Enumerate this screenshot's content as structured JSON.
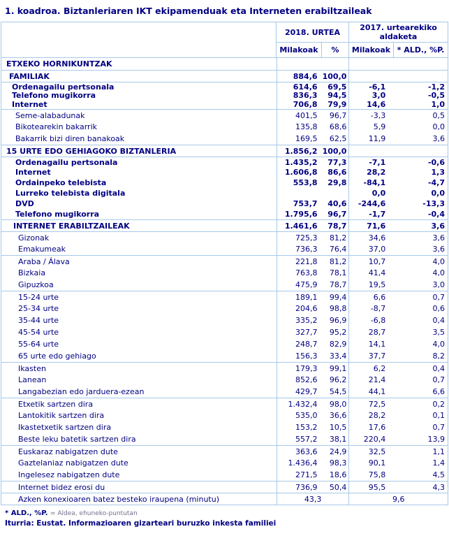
{
  "title": "1. koadroa. Biztanleriaren IKT ekipamenduak eta Interneten erabiltzaileak",
  "colors": {
    "text_navy": "#000082",
    "border_blue": "#a6c9e8"
  },
  "table": {
    "header": {
      "col_2018": "2018. URTEA",
      "col_2017": "2017. urtearekiko aldaketa",
      "sub_milakoak_2018": "Milakoak",
      "sub_pct_2018": "%",
      "sub_milakoak_2017": "Milakoak",
      "sub_ald_2017": "* ALD., %P."
    },
    "rows": [
      {
        "label": "ETXEKO HORNIKUNTZAK",
        "m18": "",
        "p18": "",
        "m17": "",
        "ald": "",
        "bold": true,
        "lvl": 0,
        "sz": "t",
        "bt": false
      },
      {
        "label": "FAMILIAK",
        "m18": "884,6",
        "p18": "100,0",
        "m17": "",
        "ald": "",
        "bold": true,
        "lvl": 1,
        "sz": "t",
        "bt": true
      },
      {
        "label": "Ordenagailu pertsonala",
        "m18": "614,6",
        "p18": "69,5",
        "m17": "-6,1",
        "ald": "-1,2",
        "bold": true,
        "lvl": 2,
        "sz": "c",
        "bt": true
      },
      {
        "label": "Telefono mugikorra",
        "m18": "836,3",
        "p18": "94,5",
        "m17": "3,0",
        "ald": "-0,5",
        "bold": true,
        "lvl": 2,
        "sz": "c",
        "bt": false
      },
      {
        "label": "Internet",
        "m18": "706,8",
        "p18": "79,9",
        "m17": "14,6",
        "ald": "1,0",
        "bold": true,
        "lvl": 2,
        "sz": "c",
        "bt": false
      },
      {
        "label": "Seme-alabadunak",
        "m18": "401,5",
        "p18": "96,7",
        "m17": "-3,3",
        "ald": "0,5",
        "bold": false,
        "lvl": 4,
        "sz": "n",
        "bt": true
      },
      {
        "label": "Bikotearekin bakarrik",
        "m18": "135,8",
        "p18": "68,6",
        "m17": "5,9",
        "ald": "0,0",
        "bold": false,
        "lvl": 4,
        "sz": "n",
        "bt": false
      },
      {
        "label": "Bakarrik bizi diren banakoak",
        "m18": "169,5",
        "p18": "62,5",
        "m17": "11,9",
        "ald": "3,6",
        "bold": false,
        "lvl": 4,
        "sz": "n",
        "bt": false
      },
      {
        "label": "15 URTE EDO GEHIAGOKO BIZTANLERIA",
        "m18": "1.856,2",
        "p18": "100,0",
        "m17": "",
        "ald": "",
        "bold": true,
        "lvl": 0,
        "sz": "t",
        "bt": true
      },
      {
        "label": "Ordenagailu pertsonala",
        "m18": "1.435,2",
        "p18": "77,3",
        "m17": "-7,1",
        "ald": "-0,6",
        "bold": true,
        "lvl": 4,
        "sz": "s",
        "bt": true
      },
      {
        "label": "Internet",
        "m18": "1.606,8",
        "p18": "86,6",
        "m17": "28,2",
        "ald": "1,3",
        "bold": true,
        "lvl": 4,
        "sz": "s",
        "bt": false
      },
      {
        "label": "Ordainpeko telebista",
        "m18": "553,8",
        "p18": "29,8",
        "m17": "-84,1",
        "ald": "-4,7",
        "bold": true,
        "lvl": 4,
        "sz": "s",
        "bt": false
      },
      {
        "label": "Lurreko telebista digitala",
        "m18": "",
        "p18": "",
        "m17": "0,0",
        "ald": "0,0",
        "bold": true,
        "lvl": 4,
        "sz": "s",
        "bt": false
      },
      {
        "label": "DVD",
        "m18": "753,7",
        "p18": "40,6",
        "m17": "-244,6",
        "ald": "-13,3",
        "bold": true,
        "lvl": 4,
        "sz": "s",
        "bt": false
      },
      {
        "label": "Telefono mugikorra",
        "m18": "1.795,6",
        "p18": "96,7",
        "m17": "-1,7",
        "ald": "-0,4",
        "bold": true,
        "lvl": 4,
        "sz": "s",
        "bt": false
      },
      {
        "label": "INTERNET ERABILTZAILEAK",
        "m18": "1.461,6",
        "p18": "78,7",
        "m17": "71,6",
        "ald": "3,6",
        "bold": true,
        "lvl": 3,
        "sz": "t",
        "bt": true
      },
      {
        "label": "Gizonak",
        "m18": "725,3",
        "p18": "81,2",
        "m17": "34,6",
        "ald": "3,6",
        "bold": false,
        "lvl": 5,
        "sz": "n",
        "bt": true
      },
      {
        "label": "Emakumeak",
        "m18": "736,3",
        "p18": "76,4",
        "m17": "37,0",
        "ald": "3,6",
        "bold": false,
        "lvl": 5,
        "sz": "n",
        "bt": false
      },
      {
        "label": "Araba / Álava",
        "m18": "221,8",
        "p18": "81,2",
        "m17": "10,7",
        "ald": "4,0",
        "bold": false,
        "lvl": 5,
        "sz": "n",
        "bt": true
      },
      {
        "label": "Bizkaia",
        "m18": "763,8",
        "p18": "78,1",
        "m17": "41,4",
        "ald": "4,0",
        "bold": false,
        "lvl": 5,
        "sz": "n",
        "bt": false
      },
      {
        "label": "Gipuzkoa",
        "m18": "475,9",
        "p18": "78,7",
        "m17": "19,5",
        "ald": "3,0",
        "bold": false,
        "lvl": 5,
        "sz": "n",
        "bt": false
      },
      {
        "label": "15-24 urte",
        "m18": "189,1",
        "p18": "99,4",
        "m17": "6,6",
        "ald": "0,7",
        "bold": false,
        "lvl": 5,
        "sz": "n",
        "bt": true
      },
      {
        "label": "25-34 urte",
        "m18": "204,6",
        "p18": "98,8",
        "m17": "-8,7",
        "ald": "0,6",
        "bold": false,
        "lvl": 5,
        "sz": "n",
        "bt": false
      },
      {
        "label": "35-44 urte",
        "m18": "335,2",
        "p18": "96,9",
        "m17": "-6,8",
        "ald": "0,4",
        "bold": false,
        "lvl": 5,
        "sz": "n",
        "bt": false
      },
      {
        "label": "45-54 urte",
        "m18": "327,7",
        "p18": "95,2",
        "m17": "28,7",
        "ald": "3,5",
        "bold": false,
        "lvl": 5,
        "sz": "n",
        "bt": false
      },
      {
        "label": "55-64 urte",
        "m18": "248,7",
        "p18": "82,9",
        "m17": "14,1",
        "ald": "4,0",
        "bold": false,
        "lvl": 5,
        "sz": "n",
        "bt": false
      },
      {
        "label": "65 urte edo gehiago",
        "m18": "156,3",
        "p18": "33,4",
        "m17": "37,7",
        "ald": "8,2",
        "bold": false,
        "lvl": 5,
        "sz": "n",
        "bt": false
      },
      {
        "label": "Ikasten",
        "m18": "179,3",
        "p18": "99,1",
        "m17": "6,2",
        "ald": "0,4",
        "bold": false,
        "lvl": 5,
        "sz": "n",
        "bt": true
      },
      {
        "label": "Lanean",
        "m18": "852,6",
        "p18": "96,2",
        "m17": "21,4",
        "ald": "0,7",
        "bold": false,
        "lvl": 5,
        "sz": "n",
        "bt": false
      },
      {
        "label": "Langabezian edo jarduera-ezean",
        "m18": "429,7",
        "p18": "54,5",
        "m17": "44,1",
        "ald": "6,6",
        "bold": false,
        "lvl": 5,
        "sz": "n",
        "bt": false
      },
      {
        "label": "Etxetik sartzen dira",
        "m18": "1.432,4",
        "p18": "98,0",
        "m17": "72,5",
        "ald": "0,2",
        "bold": false,
        "lvl": 5,
        "sz": "n",
        "bt": true
      },
      {
        "label": "Lantokitik sartzen dira",
        "m18": "535,0",
        "p18": "36,6",
        "m17": "28,2",
        "ald": "0,1",
        "bold": false,
        "lvl": 5,
        "sz": "n",
        "bt": false
      },
      {
        "label": "Ikastetxetik sartzen dira",
        "m18": "153,2",
        "p18": "10,5",
        "m17": "17,6",
        "ald": "0,7",
        "bold": false,
        "lvl": 5,
        "sz": "n",
        "bt": false
      },
      {
        "label": "Beste leku batetik sartzen dira",
        "m18": "557,2",
        "p18": "38,1",
        "m17": "220,4",
        "ald": "13,9",
        "bold": false,
        "lvl": 5,
        "sz": "n",
        "bt": false
      },
      {
        "label": "Euskaraz nabigatzen dute",
        "m18": "363,6",
        "p18": "24,9",
        "m17": "32,5",
        "ald": "1,1",
        "bold": false,
        "lvl": 5,
        "sz": "n",
        "bt": true
      },
      {
        "label": "Gaztelaniaz nabigatzen dute",
        "m18": "1.436,4",
        "p18": "98,3",
        "m17": "90,1",
        "ald": "1,4",
        "bold": false,
        "lvl": 5,
        "sz": "n",
        "bt": false
      },
      {
        "label": "Ingelesez nabigatzen dute",
        "m18": "271,5",
        "p18": "18,6",
        "m17": "75,8",
        "ald": "4,5",
        "bold": false,
        "lvl": 5,
        "sz": "n",
        "bt": false
      },
      {
        "label": "Internet bidez erosi du",
        "m18": "736,9",
        "p18": "50,4",
        "m17": "95,5",
        "ald": "4,3",
        "bold": false,
        "lvl": 5,
        "sz": "n",
        "bt": true
      },
      {
        "label": "Azken konexioaren batez besteko iraupena (minutu)",
        "m18": "43,3",
        "p18": "",
        "m17": "9,6",
        "ald": "",
        "bold": false,
        "lvl": 5,
        "sz": "n",
        "bt": true,
        "merged": true
      }
    ]
  },
  "footnotes": {
    "note_bold": "* ALD., %P.",
    "note_rest": "= Aldea, ehuneko-puntutan",
    "source": "Iturria: Eustat. Informazioaren gizarteari buruzko inkesta familiei"
  }
}
